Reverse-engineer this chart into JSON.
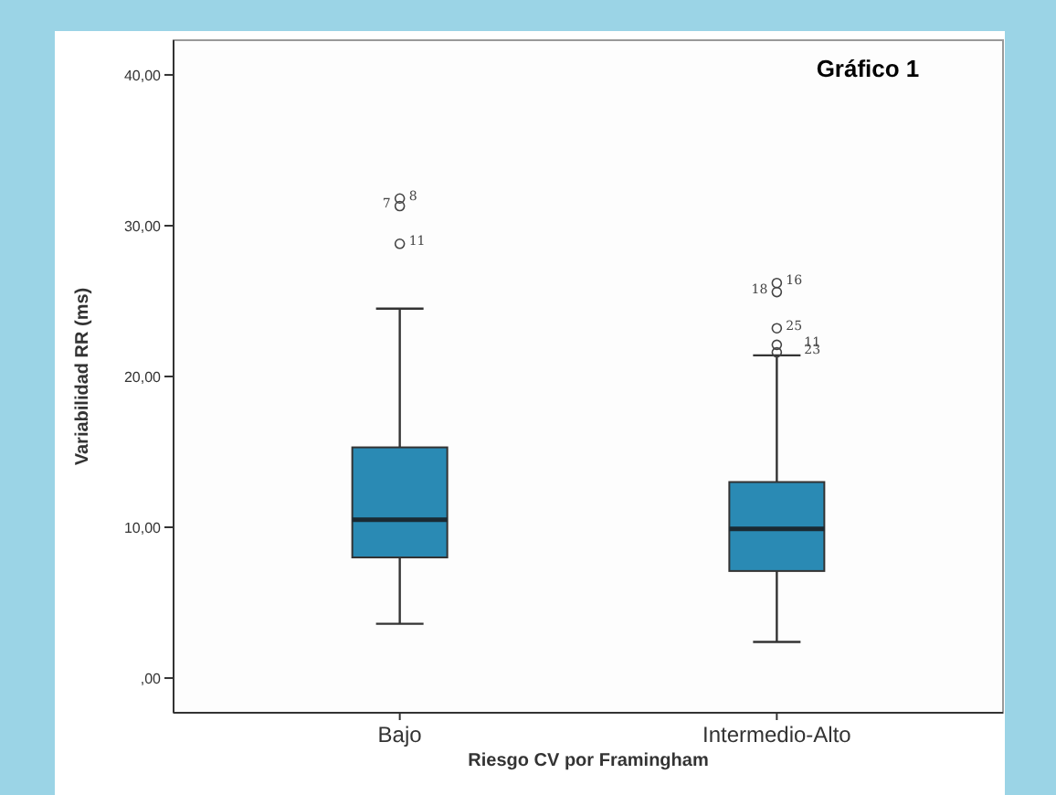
{
  "chart_data": {
    "type": "box",
    "title": "Gráfico 1",
    "xlabel": "Riesgo CV por Framingham",
    "ylabel": "Variabilidad RR (ms)",
    "categories": [
      "Bajo",
      "Intermedio-Alto"
    ],
    "boxes": [
      {
        "low": 3.6,
        "q1": 8.0,
        "median": 10.5,
        "q3": 15.3,
        "high": 24.5,
        "outliers": [
          31.8,
          31.3,
          28.8
        ]
      },
      {
        "low": 2.4,
        "q1": 7.1,
        "median": 9.9,
        "q3": 13.0,
        "high": 21.4,
        "outliers": [
          26.2,
          25.6,
          23.2,
          22.1,
          21.6
        ]
      }
    ],
    "color": "#2a8ab4",
    "ylim": [
      -2.3,
      42.3
    ],
    "yticks": [
      {
        "value": 0,
        "label": ",00"
      },
      {
        "value": 10,
        "label": "10,00"
      },
      {
        "value": 20,
        "label": "20,00"
      },
      {
        "value": 30,
        "label": "30,00"
      },
      {
        "value": 40,
        "label": "40,00"
      }
    ],
    "annotations": [
      "8",
      "7",
      "11",
      "16",
      "18",
      "25",
      "11",
      "23"
    ],
    "grid": false
  }
}
